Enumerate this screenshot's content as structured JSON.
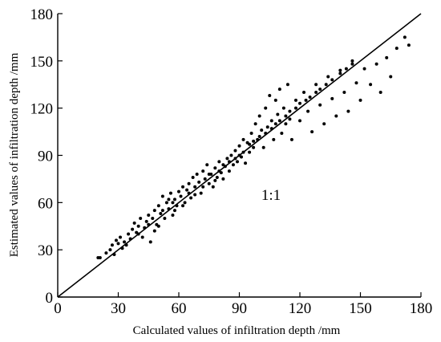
{
  "chart_data": {
    "type": "scatter",
    "title": "",
    "xlabel": "Calculated values of infiltration depth /mm",
    "ylabel": "Estimated values of infiltration depth /mm",
    "xlim": [
      0,
      180
    ],
    "ylim": [
      0,
      180
    ],
    "xticks": [
      "0",
      "30",
      "60",
      "90",
      "120",
      "150",
      "180"
    ],
    "yticks": [
      "0",
      "30",
      "60",
      "90",
      "120",
      "150",
      "180"
    ],
    "grid": false,
    "legend": "none",
    "reference_line": {
      "label": "1:1",
      "from": [
        0,
        0
      ],
      "to": [
        180,
        180
      ]
    },
    "marker_color": "#000000",
    "series": [
      {
        "points": [
          [
            20,
            25
          ],
          [
            21,
            25
          ],
          [
            24,
            28
          ],
          [
            26,
            30
          ],
          [
            27,
            33
          ],
          [
            28,
            27
          ],
          [
            29,
            36
          ],
          [
            30,
            34
          ],
          [
            31,
            38
          ],
          [
            32,
            31
          ],
          [
            33,
            35
          ],
          [
            34,
            33
          ],
          [
            35,
            40
          ],
          [
            36,
            37
          ],
          [
            37,
            43
          ],
          [
            38,
            47
          ],
          [
            39,
            41
          ],
          [
            40,
            45
          ],
          [
            41,
            50
          ],
          [
            42,
            38
          ],
          [
            43,
            44
          ],
          [
            44,
            48
          ],
          [
            45,
            52
          ],
          [
            46,
            35
          ],
          [
            47,
            50
          ],
          [
            48,
            55
          ],
          [
            49,
            46
          ],
          [
            50,
            58
          ],
          [
            51,
            53
          ],
          [
            52,
            64
          ],
          [
            53,
            50
          ],
          [
            54,
            60
          ],
          [
            55,
            56
          ],
          [
            56,
            66
          ],
          [
            57,
            52
          ],
          [
            58,
            62
          ],
          [
            59,
            58
          ],
          [
            60,
            67
          ],
          [
            61,
            64
          ],
          [
            62,
            70
          ],
          [
            63,
            60
          ],
          [
            64,
            68
          ],
          [
            65,
            72
          ],
          [
            66,
            63
          ],
          [
            67,
            76
          ],
          [
            68,
            70
          ],
          [
            69,
            78
          ],
          [
            70,
            73
          ],
          [
            71,
            66
          ],
          [
            72,
            80
          ],
          [
            73,
            75
          ],
          [
            74,
            84
          ],
          [
            75,
            72
          ],
          [
            76,
            78
          ],
          [
            77,
            70
          ],
          [
            78,
            82
          ],
          [
            79,
            76
          ],
          [
            80,
            86
          ],
          [
            81,
            79
          ],
          [
            82,
            75
          ],
          [
            83,
            83
          ],
          [
            84,
            88
          ],
          [
            85,
            80
          ],
          [
            86,
            90
          ],
          [
            87,
            84
          ],
          [
            88,
            93
          ],
          [
            89,
            86
          ],
          [
            90,
            96
          ],
          [
            91,
            89
          ],
          [
            92,
            100
          ],
          [
            93,
            85
          ],
          [
            94,
            98
          ],
          [
            95,
            92
          ],
          [
            96,
            104
          ],
          [
            97,
            95
          ],
          [
            98,
            110
          ],
          [
            99,
            100
          ],
          [
            100,
            115
          ],
          [
            101,
            106
          ],
          [
            102,
            95
          ],
          [
            103,
            120
          ],
          [
            104,
            108
          ],
          [
            105,
            128
          ],
          [
            106,
            112
          ],
          [
            107,
            100
          ],
          [
            108,
            125
          ],
          [
            109,
            116
          ],
          [
            110,
            132
          ],
          [
            111,
            104
          ],
          [
            112,
            120
          ],
          [
            113,
            110
          ],
          [
            114,
            135
          ],
          [
            115,
            118
          ],
          [
            116,
            100
          ],
          [
            118,
            125
          ],
          [
            120,
            112
          ],
          [
            122,
            130
          ],
          [
            124,
            118
          ],
          [
            126,
            105
          ],
          [
            128,
            135
          ],
          [
            130,
            122
          ],
          [
            132,
            110
          ],
          [
            134,
            140
          ],
          [
            136,
            126
          ],
          [
            138,
            115
          ],
          [
            140,
            144
          ],
          [
            142,
            130
          ],
          [
            144,
            118
          ],
          [
            146,
            150
          ],
          [
            148,
            136
          ],
          [
            150,
            125
          ],
          [
            152,
            145
          ],
          [
            155,
            135
          ],
          [
            158,
            148
          ],
          [
            160,
            130
          ],
          [
            163,
            152
          ],
          [
            165,
            140
          ],
          [
            168,
            158
          ],
          [
            172,
            165
          ],
          [
            174,
            160
          ],
          [
            40,
            40
          ],
          [
            45,
            46
          ],
          [
            48,
            42
          ],
          [
            52,
            55
          ],
          [
            55,
            62
          ],
          [
            58,
            55
          ],
          [
            62,
            58
          ],
          [
            65,
            66
          ],
          [
            68,
            65
          ],
          [
            72,
            70
          ],
          [
            75,
            78
          ],
          [
            78,
            74
          ],
          [
            80,
            80
          ],
          [
            82,
            84
          ],
          [
            85,
            86
          ],
          [
            88,
            88
          ],
          [
            90,
            90
          ],
          [
            92,
            92
          ],
          [
            95,
            97
          ],
          [
            97,
            99
          ],
          [
            100,
            102
          ],
          [
            103,
            104
          ],
          [
            106,
            107
          ],
          [
            108,
            110
          ],
          [
            110,
            112
          ],
          [
            113,
            115
          ],
          [
            115,
            113
          ],
          [
            118,
            120
          ],
          [
            120,
            123
          ],
          [
            123,
            125
          ],
          [
            125,
            127
          ],
          [
            128,
            130
          ],
          [
            130,
            132
          ],
          [
            133,
            135
          ],
          [
            136,
            138
          ],
          [
            140,
            142
          ],
          [
            143,
            145
          ],
          [
            146,
            148
          ],
          [
            50,
            45
          ],
          [
            57,
            60
          ]
        ]
      }
    ]
  }
}
